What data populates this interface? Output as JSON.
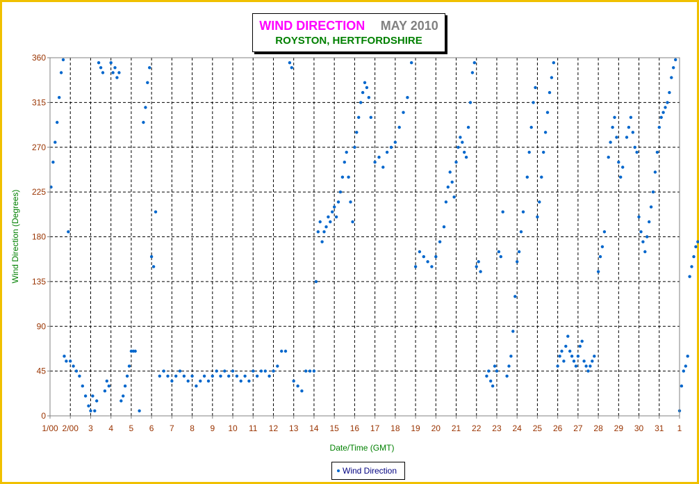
{
  "header": {
    "title": "WIND DIRECTION",
    "month": "MAY 2010",
    "subtitle": "ROYSTON, HERTFORDSHIRE"
  },
  "legend": {
    "label": "Wind Direction"
  },
  "colors": {
    "series": "#0066cc",
    "title": "#ff00ff",
    "month": "#808080",
    "subtitle": "#008000",
    "axis_label": "#008000",
    "tick_label": "#993300",
    "frame": "#f0c000"
  },
  "chart_data": {
    "type": "scatter",
    "title": "WIND DIRECTION  MAY 2010",
    "xlabel": "Date/Time (GMT)",
    "ylabel": "Wind Direction (Degrees)",
    "ylim": [
      0,
      360
    ],
    "xlim": [
      0,
      31
    ],
    "grid": true,
    "legend_position": "bottom",
    "yticks": [
      0,
      45,
      90,
      135,
      180,
      225,
      270,
      315,
      360
    ],
    "xtick_labels": [
      "1/00",
      "2/00",
      "3",
      "4",
      "5",
      "6",
      "7",
      "8",
      "9",
      "10",
      "11",
      "12",
      "13",
      "14",
      "15",
      "16",
      "17",
      "18",
      "19",
      "20",
      "21",
      "22",
      "23",
      "24",
      "25",
      "26",
      "27",
      "28",
      "29",
      "30",
      "31",
      "1"
    ],
    "series": [
      {
        "name": "Wind Direction",
        "x_unit": "days since 1 May 2010 00:00 GMT",
        "points": [
          [
            0.05,
            230
          ],
          [
            0.15,
            255
          ],
          [
            0.25,
            275
          ],
          [
            0.35,
            295
          ],
          [
            0.45,
            320
          ],
          [
            0.55,
            345
          ],
          [
            0.65,
            358
          ],
          [
            0.7,
            60
          ],
          [
            0.8,
            55
          ],
          [
            0.9,
            185
          ],
          [
            1.0,
            55
          ],
          [
            1.15,
            50
          ],
          [
            1.3,
            45
          ],
          [
            1.45,
            40
          ],
          [
            1.6,
            30
          ],
          [
            1.75,
            20
          ],
          [
            1.9,
            10
          ],
          [
            2.0,
            5
          ],
          [
            2.1,
            20
          ],
          [
            2.2,
            5
          ],
          [
            2.3,
            15
          ],
          [
            2.4,
            355
          ],
          [
            2.5,
            350
          ],
          [
            2.6,
            345
          ],
          [
            2.7,
            25
          ],
          [
            2.8,
            35
          ],
          [
            2.9,
            30
          ],
          [
            3.0,
            355
          ],
          [
            3.1,
            345
          ],
          [
            3.2,
            350
          ],
          [
            3.3,
            340
          ],
          [
            3.4,
            345
          ],
          [
            3.5,
            15
          ],
          [
            3.6,
            20
          ],
          [
            3.7,
            30
          ],
          [
            3.8,
            40
          ],
          [
            3.9,
            50
          ],
          [
            4.0,
            65
          ],
          [
            4.1,
            65
          ],
          [
            4.2,
            65
          ],
          [
            4.4,
            5
          ],
          [
            4.6,
            295
          ],
          [
            4.7,
            310
          ],
          [
            4.8,
            335
          ],
          [
            4.9,
            350
          ],
          [
            5.0,
            160
          ],
          [
            5.1,
            150
          ],
          [
            5.2,
            205
          ],
          [
            5.4,
            40
          ],
          [
            5.6,
            45
          ],
          [
            5.8,
            40
          ],
          [
            6.0,
            35
          ],
          [
            6.2,
            40
          ],
          [
            6.4,
            45
          ],
          [
            6.6,
            40
          ],
          [
            6.8,
            35
          ],
          [
            7.0,
            40
          ],
          [
            7.2,
            30
          ],
          [
            7.4,
            35
          ],
          [
            7.6,
            40
          ],
          [
            7.8,
            35
          ],
          [
            8.0,
            40
          ],
          [
            8.2,
            45
          ],
          [
            8.4,
            40
          ],
          [
            8.6,
            45
          ],
          [
            8.8,
            40
          ],
          [
            9.0,
            45
          ],
          [
            9.2,
            40
          ],
          [
            9.4,
            35
          ],
          [
            9.6,
            40
          ],
          [
            9.8,
            35
          ],
          [
            10.0,
            45
          ],
          [
            10.2,
            40
          ],
          [
            10.4,
            45
          ],
          [
            10.6,
            45
          ],
          [
            10.8,
            40
          ],
          [
            11.0,
            45
          ],
          [
            11.2,
            50
          ],
          [
            11.4,
            65
          ],
          [
            11.6,
            65
          ],
          [
            11.8,
            355
          ],
          [
            11.9,
            350
          ],
          [
            12.0,
            35
          ],
          [
            12.2,
            30
          ],
          [
            12.4,
            25
          ],
          [
            12.6,
            45
          ],
          [
            12.8,
            45
          ],
          [
            13.0,
            45
          ],
          [
            13.1,
            135
          ],
          [
            13.2,
            185
          ],
          [
            13.3,
            195
          ],
          [
            13.4,
            175
          ],
          [
            13.5,
            185
          ],
          [
            13.6,
            190
          ],
          [
            13.7,
            200
          ],
          [
            13.8,
            195
          ],
          [
            13.9,
            205
          ],
          [
            14.0,
            210
          ],
          [
            14.1,
            200
          ],
          [
            14.2,
            215
          ],
          [
            14.3,
            225
          ],
          [
            14.4,
            240
          ],
          [
            14.5,
            255
          ],
          [
            14.6,
            265
          ],
          [
            14.7,
            240
          ],
          [
            14.8,
            215
          ],
          [
            14.9,
            195
          ],
          [
            15.0,
            270
          ],
          [
            15.1,
            285
          ],
          [
            15.2,
            300
          ],
          [
            15.3,
            315
          ],
          [
            15.4,
            325
          ],
          [
            15.5,
            335
          ],
          [
            15.6,
            330
          ],
          [
            15.7,
            320
          ],
          [
            15.8,
            300
          ],
          [
            16.0,
            255
          ],
          [
            16.2,
            260
          ],
          [
            16.4,
            250
          ],
          [
            16.6,
            265
          ],
          [
            16.8,
            270
          ],
          [
            17.0,
            275
          ],
          [
            17.2,
            290
          ],
          [
            17.4,
            305
          ],
          [
            17.6,
            320
          ],
          [
            17.8,
            355
          ],
          [
            18.0,
            150
          ],
          [
            18.2,
            165
          ],
          [
            18.4,
            160
          ],
          [
            18.6,
            155
          ],
          [
            18.8,
            150
          ],
          [
            19.0,
            160
          ],
          [
            19.2,
            175
          ],
          [
            19.4,
            190
          ],
          [
            19.5,
            215
          ],
          [
            19.6,
            230
          ],
          [
            19.7,
            245
          ],
          [
            19.8,
            235
          ],
          [
            19.9,
            220
          ],
          [
            20.0,
            255
          ],
          [
            20.1,
            270
          ],
          [
            20.2,
            280
          ],
          [
            20.3,
            275
          ],
          [
            20.4,
            265
          ],
          [
            20.5,
            260
          ],
          [
            20.6,
            290
          ],
          [
            20.7,
            315
          ],
          [
            20.8,
            345
          ],
          [
            20.9,
            355
          ],
          [
            21.0,
            150
          ],
          [
            21.1,
            155
          ],
          [
            21.2,
            145
          ],
          [
            21.5,
            40
          ],
          [
            21.6,
            45
          ],
          [
            21.7,
            35
          ],
          [
            21.8,
            30
          ],
          [
            21.9,
            50
          ],
          [
            22.0,
            45
          ],
          [
            22.1,
            165
          ],
          [
            22.2,
            160
          ],
          [
            22.3,
            205
          ],
          [
            22.5,
            40
          ],
          [
            22.6,
            50
          ],
          [
            22.7,
            60
          ],
          [
            22.8,
            85
          ],
          [
            22.9,
            120
          ],
          [
            23.0,
            155
          ],
          [
            23.1,
            165
          ],
          [
            23.2,
            185
          ],
          [
            23.3,
            205
          ],
          [
            23.5,
            240
          ],
          [
            23.6,
            265
          ],
          [
            23.7,
            290
          ],
          [
            23.8,
            315
          ],
          [
            23.9,
            330
          ],
          [
            24.0,
            200
          ],
          [
            24.1,
            215
          ],
          [
            24.2,
            240
          ],
          [
            24.3,
            265
          ],
          [
            24.4,
            285
          ],
          [
            24.5,
            305
          ],
          [
            24.6,
            325
          ],
          [
            24.7,
            340
          ],
          [
            24.8,
            355
          ],
          [
            25.0,
            50
          ],
          [
            25.1,
            60
          ],
          [
            25.2,
            65
          ],
          [
            25.3,
            55
          ],
          [
            25.4,
            70
          ],
          [
            25.5,
            80
          ],
          [
            25.6,
            65
          ],
          [
            25.7,
            60
          ],
          [
            25.8,
            55
          ],
          [
            25.9,
            50
          ],
          [
            26.0,
            60
          ],
          [
            26.1,
            70
          ],
          [
            26.2,
            75
          ],
          [
            26.3,
            55
          ],
          [
            26.4,
            50
          ],
          [
            26.5,
            45
          ],
          [
            26.6,
            50
          ],
          [
            26.7,
            55
          ],
          [
            26.8,
            60
          ],
          [
            27.0,
            145
          ],
          [
            27.1,
            160
          ],
          [
            27.2,
            170
          ],
          [
            27.3,
            185
          ],
          [
            27.5,
            260
          ],
          [
            27.6,
            275
          ],
          [
            27.7,
            290
          ],
          [
            27.8,
            300
          ],
          [
            27.9,
            280
          ],
          [
            28.0,
            255
          ],
          [
            28.1,
            240
          ],
          [
            28.2,
            250
          ],
          [
            28.4,
            280
          ],
          [
            28.5,
            290
          ],
          [
            28.6,
            300
          ],
          [
            28.7,
            285
          ],
          [
            28.8,
            270
          ],
          [
            28.9,
            265
          ],
          [
            29.0,
            200
          ],
          [
            29.1,
            185
          ],
          [
            29.2,
            175
          ],
          [
            29.3,
            165
          ],
          [
            29.4,
            180
          ],
          [
            29.5,
            195
          ],
          [
            29.6,
            210
          ],
          [
            29.7,
            225
          ],
          [
            29.8,
            245
          ],
          [
            29.9,
            265
          ],
          [
            30.0,
            290
          ],
          [
            30.1,
            300
          ],
          [
            30.2,
            305
          ],
          [
            30.3,
            310
          ],
          [
            30.4,
            315
          ],
          [
            30.5,
            325
          ],
          [
            30.6,
            340
          ],
          [
            30.7,
            350
          ],
          [
            30.8,
            358
          ],
          [
            31.0,
            5
          ],
          [
            31.1,
            30
          ],
          [
            31.2,
            45
          ],
          [
            31.3,
            50
          ],
          [
            31.4,
            60
          ],
          [
            31.5,
            140
          ],
          [
            31.6,
            150
          ],
          [
            31.7,
            160
          ],
          [
            31.8,
            170
          ],
          [
            31.9,
            175
          ]
        ]
      }
    ]
  }
}
